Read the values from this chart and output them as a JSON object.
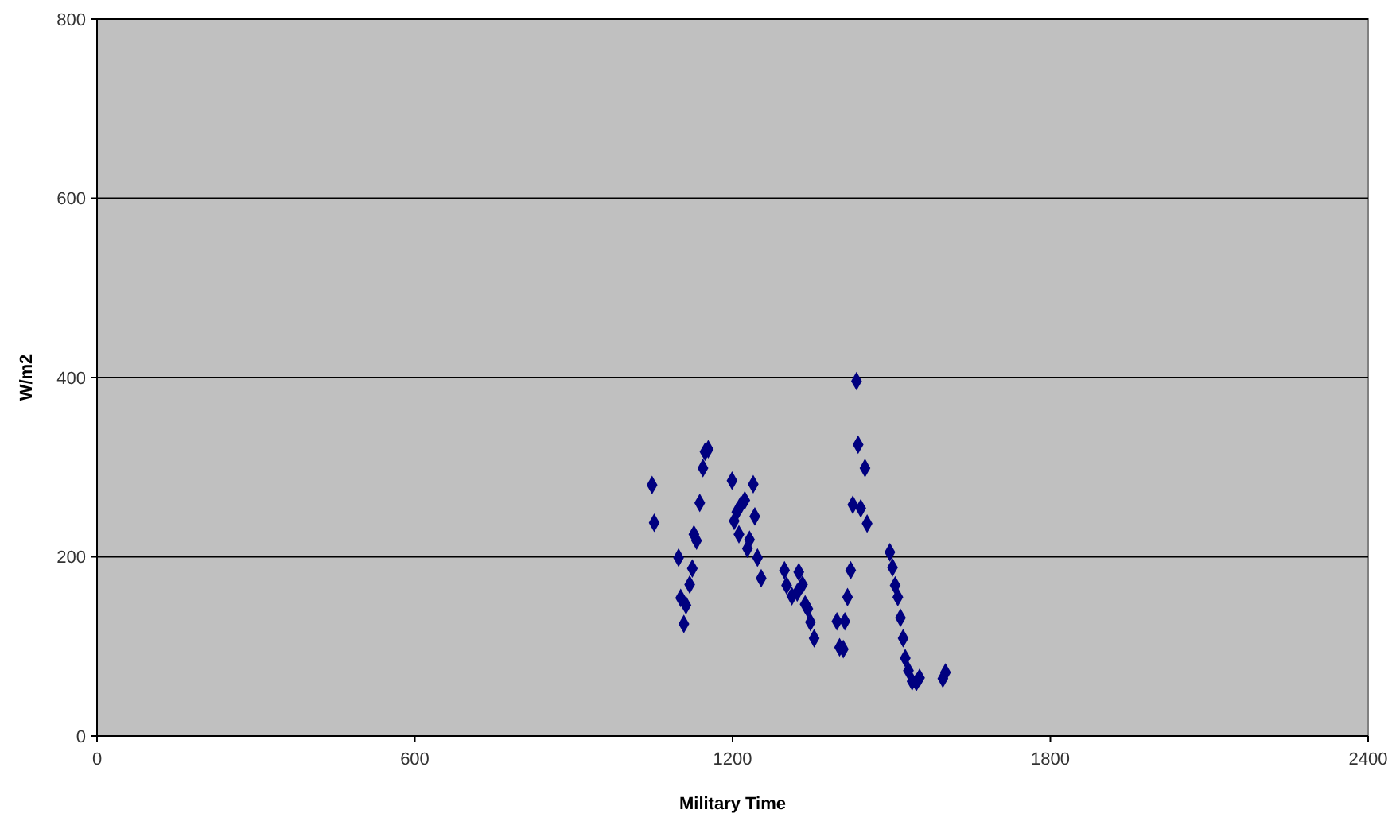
{
  "chart_data": {
    "type": "scatter",
    "xlabel": "Military Time",
    "ylabel": "W/m2",
    "xlim": [
      0,
      2400
    ],
    "xticks": [
      0,
      600,
      1200,
      1800,
      2400
    ],
    "ylim": [
      0,
      800
    ],
    "yticks": [
      0,
      200,
      400,
      600,
      800
    ],
    "grid": "y",
    "marker": "diamond",
    "series": [
      {
        "color": "#000080",
        "x": [
          1048,
          1052,
          1098,
          1124,
          1119,
          1102,
          1112,
          1108,
          1127,
          1132,
          1138,
          1144,
          1148,
          1154,
          1199,
          1239,
          1223,
          1216,
          1208,
          1203,
          1242,
          1212,
          1232,
          1228,
          1247,
          1254,
          1298,
          1325,
          1302,
          1332,
          1312,
          1322,
          1337,
          1342,
          1347,
          1354,
          1397,
          1412,
          1402,
          1409,
          1417,
          1423,
          1434,
          1437,
          1450,
          1427,
          1442,
          1454,
          1497,
          1502,
          1507,
          1512,
          1517,
          1522,
          1526,
          1532,
          1539,
          1547,
          1553,
          1597,
          1602
        ],
        "values": [
          280,
          238,
          199,
          187,
          169,
          154,
          146,
          125,
          225,
          218,
          260,
          299,
          317,
          320,
          285,
          281,
          263,
          258,
          250,
          240,
          245,
          225,
          219,
          209,
          199,
          176,
          185,
          183,
          168,
          169,
          156,
          160,
          147,
          142,
          127,
          109,
          128,
          128,
          99,
          97,
          155,
          185,
          396,
          325,
          299,
          258,
          254,
          237,
          205,
          188,
          168,
          155,
          132,
          109,
          87,
          73,
          61,
          60,
          65,
          64,
          71
        ]
      }
    ]
  }
}
